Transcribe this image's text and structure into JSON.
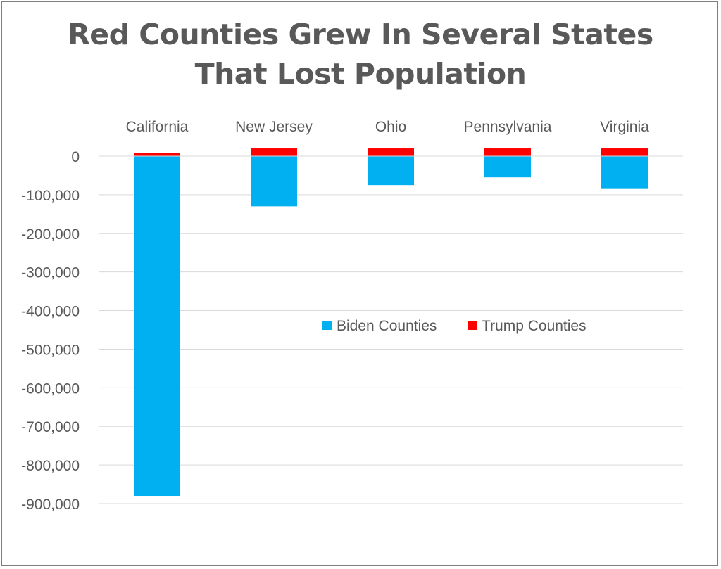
{
  "chart_data": {
    "type": "bar",
    "stacked": true,
    "title_lines": [
      "Red Counties Grew In Several States",
      "That Lost Population"
    ],
    "categories": [
      "California",
      "New Jersey",
      "Ohio",
      "Pennsylvania",
      "Virginia"
    ],
    "series": [
      {
        "name": "Biden Counties",
        "color": "#00B0F0",
        "values": [
          -880000,
          -130000,
          -75000,
          -55000,
          -85000
        ]
      },
      {
        "name": "Trump Counties",
        "color": "#FF0000",
        "values": [
          8000,
          20000,
          20000,
          20000,
          20000
        ]
      }
    ],
    "ylim": [
      -900000,
      0
    ],
    "yticks": [
      0,
      -100000,
      -200000,
      -300000,
      -400000,
      -500000,
      -600000,
      -700000,
      -800000,
      -900000
    ],
    "ytick_labels": [
      "0",
      "-100,000",
      "-200,000",
      "-300,000",
      "-400,000",
      "-500,000",
      "-600,000",
      "-700,000",
      "-800,000",
      "-900,000"
    ],
    "xaxis_position": "top",
    "grid": true,
    "legend_position": "center"
  }
}
